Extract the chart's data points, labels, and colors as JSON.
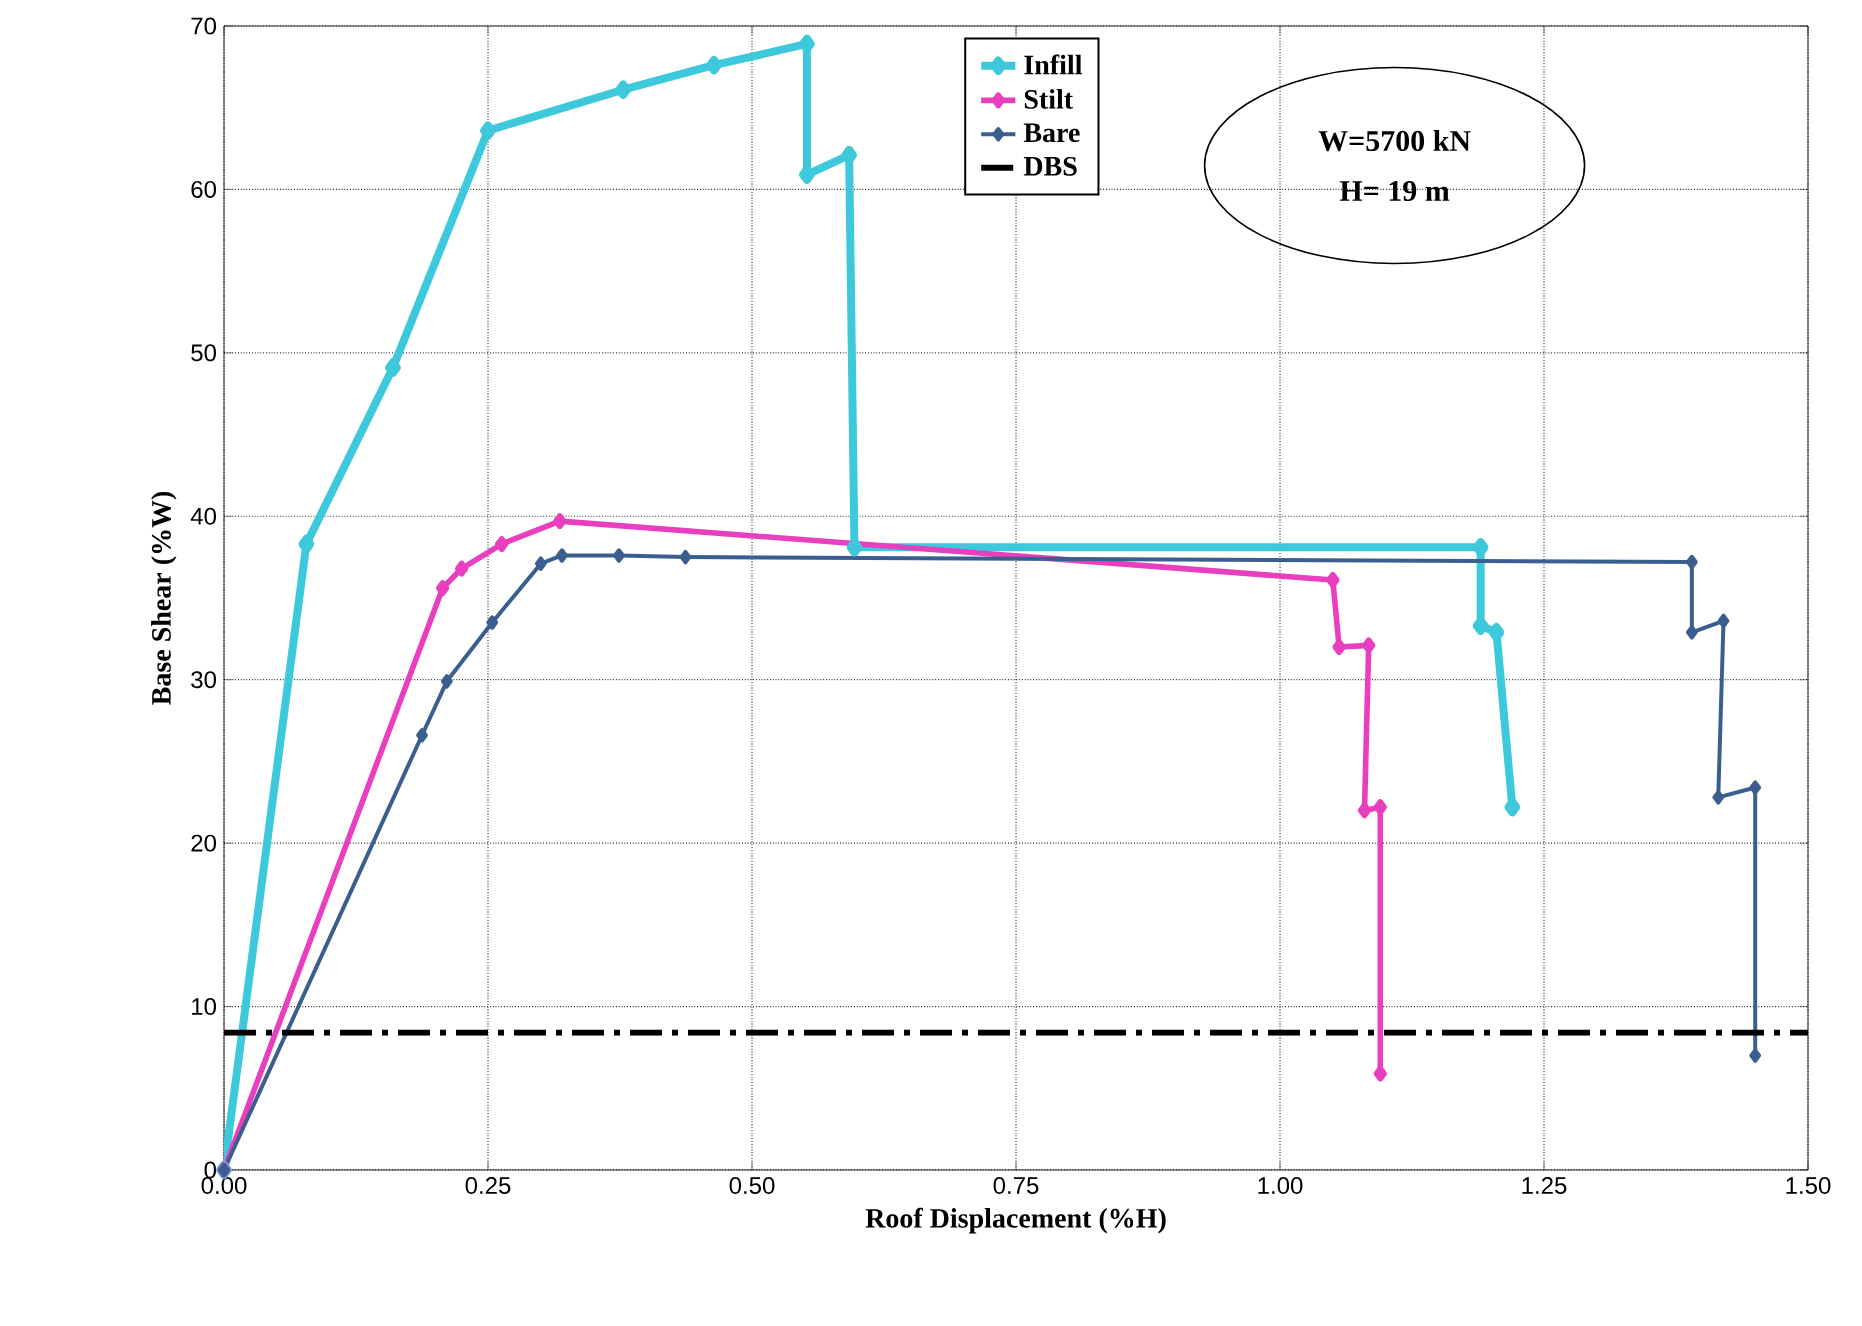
{
  "chart_data": {
    "type": "line",
    "xlabel": "Roof Displacement (%H)",
    "ylabel": "Base Shear (%W)",
    "xlim": [
      0,
      1.5
    ],
    "ylim": [
      0,
      70
    ],
    "xticks": [
      {
        "value": 0,
        "label": "0.00"
      },
      {
        "value": 0.25,
        "label": "0.25"
      },
      {
        "value": 0.5,
        "label": "0.50"
      },
      {
        "value": 0.75,
        "label": "0.75"
      },
      {
        "value": 1.0,
        "label": "1.00"
      },
      {
        "value": 1.25,
        "label": "1.25"
      },
      {
        "value": 1.5,
        "label": "1.50"
      }
    ],
    "yticks": [
      0,
      10,
      20,
      30,
      40,
      50,
      60,
      70
    ],
    "grid": true,
    "legend": "top",
    "marker": "diamond",
    "series": [
      {
        "name": "Infill",
        "color": "#3ec8dc",
        "x": [
          0,
          0.078,
          0.16,
          0.25,
          0.378,
          0.464,
          0.552,
          0.552,
          0.592,
          0.597,
          1.19,
          1.19,
          1.205,
          1.22
        ],
        "values": [
          0,
          38.3,
          49.1,
          63.6,
          66.1,
          67.6,
          68.9,
          60.9,
          62.1,
          38.1,
          38.1,
          33.3,
          32.9,
          22.2
        ]
      },
      {
        "name": "Stilt",
        "color": "#e83fbf",
        "x": [
          0,
          0.207,
          0.225,
          0.263,
          0.318,
          1.05,
          1.056,
          1.084,
          1.08,
          1.095,
          1.095
        ],
        "values": [
          0,
          35.6,
          36.8,
          38.3,
          39.7,
          36.1,
          32.0,
          32.1,
          22.0,
          22.2,
          5.9
        ]
      },
      {
        "name": "Bare",
        "color": "#3a5f8f",
        "x": [
          0,
          0.1875,
          0.211,
          0.254,
          0.3,
          0.32,
          0.374,
          0.437,
          1.39,
          1.39,
          1.42,
          1.415,
          1.45,
          1.45
        ],
        "values": [
          0,
          26.6,
          29.9,
          33.5,
          37.1,
          37.6,
          37.6,
          37.5,
          37.2,
          32.9,
          33.6,
          22.8,
          23.4,
          7.0
        ]
      }
    ],
    "ref_lines": [
      {
        "axis": "y",
        "value": 8.4,
        "label": "DBS",
        "color": "#000000",
        "line_style": "dashdot"
      }
    ],
    "annotations": [
      "W=5700 kN",
      "H= 19 m"
    ]
  }
}
